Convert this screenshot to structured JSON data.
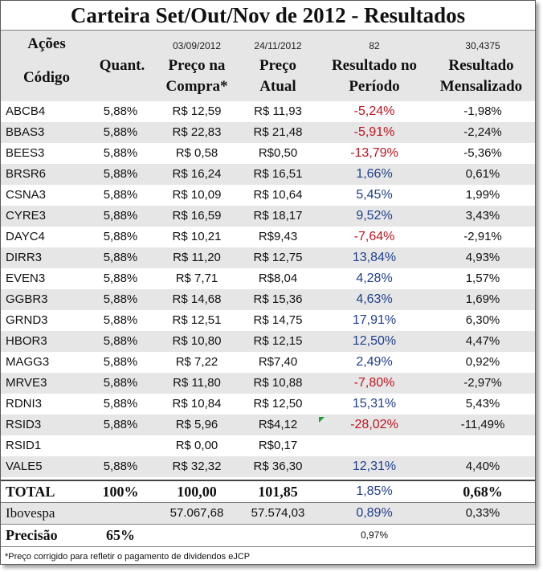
{
  "title": "Carteira Set/Out/Nov de 2012 - Resultados",
  "header": {
    "acoes": "Ações",
    "codigo": "Código",
    "quant": "Quant.",
    "buy_date": "03/09/2012",
    "buy_line1": "Preço na",
    "buy_line2": "Compra*",
    "cur_date": "24/11/2012",
    "cur_line1": "Preço",
    "cur_line2": "Atual",
    "days": "82",
    "res_line1": "Resultado no",
    "res_line2": "Período",
    "months": "30,4375",
    "mon_line1": "Resultado",
    "mon_line2": "Mensalizado"
  },
  "rows": [
    {
      "code": "ABCB4",
      "quant": "5,88%",
      "buy": "R$ 12,59",
      "cur": "R$ 11,93",
      "res": "-5,24%",
      "res_sign": "neg",
      "mon": "-1,98%"
    },
    {
      "code": "BBAS3",
      "quant": "5,88%",
      "buy": "R$ 22,83",
      "cur": "R$ 21,48",
      "res": "-5,91%",
      "res_sign": "neg",
      "mon": "-2,24%"
    },
    {
      "code": "BEES3",
      "quant": "5,88%",
      "buy": "R$ 0,58",
      "cur": "R$0,50",
      "res": "-13,79%",
      "res_sign": "neg",
      "mon": "-5,36%"
    },
    {
      "code": "BRSR6",
      "quant": "5,88%",
      "buy": "R$ 16,24",
      "cur": "R$ 16,51",
      "res": "1,66%",
      "res_sign": "pos",
      "mon": "0,61%"
    },
    {
      "code": "CSNA3",
      "quant": "5,88%",
      "buy": "R$ 10,09",
      "cur": "R$ 10,64",
      "res": "5,45%",
      "res_sign": "pos",
      "mon": "1,99%"
    },
    {
      "code": "CYRE3",
      "quant": "5,88%",
      "buy": "R$ 16,59",
      "cur": "R$ 18,17",
      "res": "9,52%",
      "res_sign": "pos",
      "mon": "3,43%"
    },
    {
      "code": "DAYC4",
      "quant": "5,88%",
      "buy": "R$ 10,21",
      "cur": "R$9,43",
      "res": "-7,64%",
      "res_sign": "neg",
      "mon": "-2,91%"
    },
    {
      "code": "DIRR3",
      "quant": "5,88%",
      "buy": "R$ 11,20",
      "cur": "R$ 12,75",
      "res": "13,84%",
      "res_sign": "pos",
      "mon": "4,93%"
    },
    {
      "code": "EVEN3",
      "quant": "5,88%",
      "buy": "R$ 7,71",
      "cur": "R$8,04",
      "res": "4,28%",
      "res_sign": "pos",
      "mon": "1,57%"
    },
    {
      "code": "GGBR3",
      "quant": "5,88%",
      "buy": "R$ 14,68",
      "cur": "R$ 15,36",
      "res": "4,63%",
      "res_sign": "pos",
      "mon": "1,69%"
    },
    {
      "code": "GRND3",
      "quant": "5,88%",
      "buy": "R$ 12,51",
      "cur": "R$ 14,75",
      "res": "17,91%",
      "res_sign": "pos",
      "mon": "6,30%"
    },
    {
      "code": "HBOR3",
      "quant": "5,88%",
      "buy": "R$ 10,80",
      "cur": "R$ 12,15",
      "res": "12,50%",
      "res_sign": "pos",
      "mon": "4,47%"
    },
    {
      "code": "MAGG3",
      "quant": "5,88%",
      "buy": "R$ 7,22",
      "cur": "R$7,40",
      "res": "2,49%",
      "res_sign": "pos",
      "mon": "0,92%"
    },
    {
      "code": "MRVE3",
      "quant": "5,88%",
      "buy": "R$ 11,80",
      "cur": "R$ 10,88",
      "res": "-7,80%",
      "res_sign": "neg",
      "mon": "-2,97%"
    },
    {
      "code": "RDNI3",
      "quant": "5,88%",
      "buy": "R$ 10,84",
      "cur": "R$ 12,50",
      "res": "15,31%",
      "res_sign": "pos",
      "mon": "5,43%"
    },
    {
      "code": "RSID3",
      "quant": "5,88%",
      "buy": "R$ 5,96",
      "cur": "R$4,12",
      "res": "-28,02%",
      "res_sign": "neg",
      "mon": "-11,49%"
    },
    {
      "code": "RSID1",
      "quant": "",
      "buy": "R$ 0,00",
      "cur": "R$0,17",
      "res": "",
      "res_sign": "pos",
      "mon": ""
    },
    {
      "code": "VALE5",
      "quant": "5,88%",
      "buy": "R$ 32,32",
      "cur": "R$ 36,30",
      "res": "12,31%",
      "res_sign": "pos",
      "mon": "4,40%"
    }
  ],
  "total": {
    "label": "TOTAL",
    "quant": "100%",
    "buy": "100,00",
    "cur": "101,85",
    "res": "1,85%",
    "mon": "0,68%"
  },
  "ibovespa": {
    "label": "Ibovespa",
    "buy": "57.067,68",
    "cur": "57.574,03",
    "res": "0,89%",
    "mon": "0,33%"
  },
  "precisao": {
    "label": "Precisão",
    "value": "65%",
    "extra": "0,97%"
  },
  "footnote": "*Preço corrigido para refletir o pagamento de dividendos eJCP",
  "colors": {
    "negative": "#c0141e",
    "positive": "#1f3f8c",
    "stripe": "#e6e6e6",
    "flag": "#1e9b32"
  }
}
